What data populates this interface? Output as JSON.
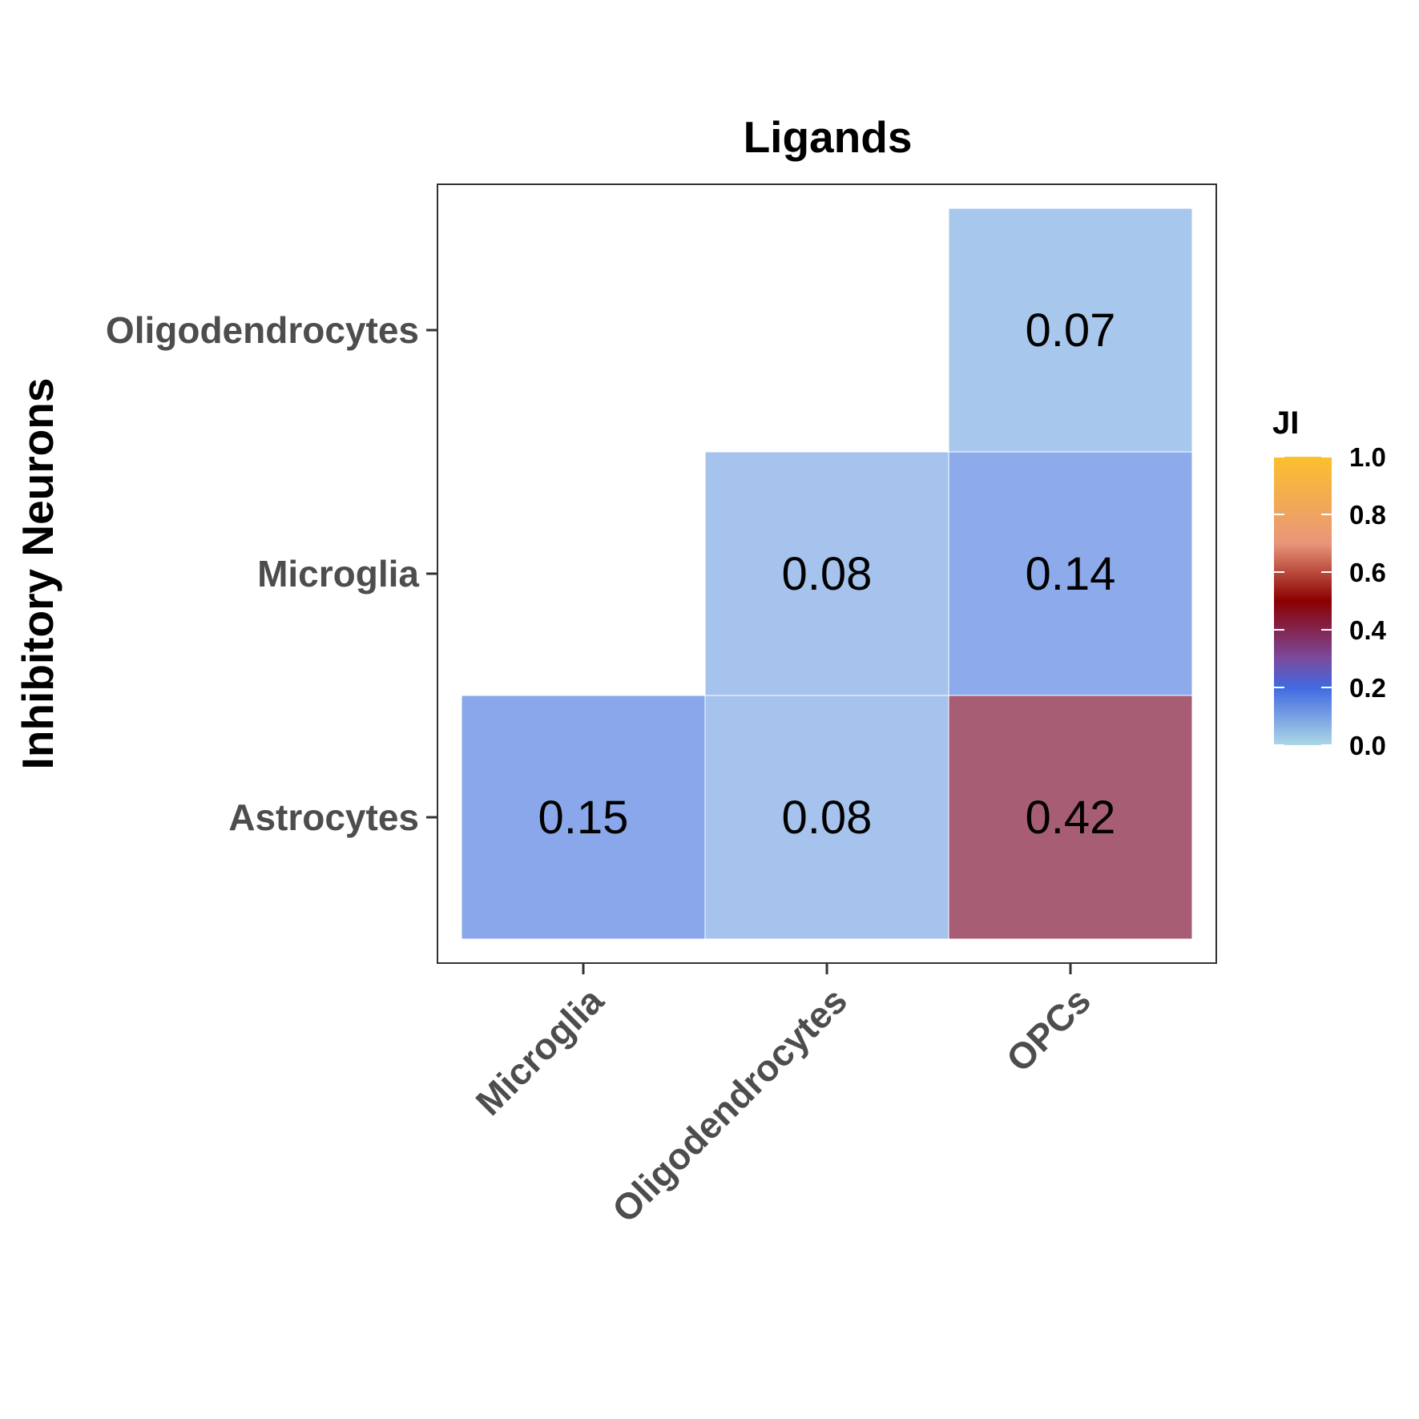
{
  "chart_data": {
    "type": "heatmap",
    "title": "Ligands",
    "xlabel": "",
    "ylabel": "Inhibitory Neurons",
    "x_categories": [
      "Microglia",
      "Oligodendrocytes",
      "OPCs"
    ],
    "y_categories": [
      "Astrocytes",
      "Microglia",
      "Oligodendrocytes"
    ],
    "cells": [
      {
        "x": "Microglia",
        "y": "Astrocytes",
        "value": 0.15,
        "label": "0.15"
      },
      {
        "x": "Oligodendrocytes",
        "y": "Astrocytes",
        "value": 0.08,
        "label": "0.08"
      },
      {
        "x": "OPCs",
        "y": "Astrocytes",
        "value": 0.42,
        "label": "0.42"
      },
      {
        "x": "Oligodendrocytes",
        "y": "Microglia",
        "value": 0.08,
        "label": "0.08"
      },
      {
        "x": "OPCs",
        "y": "Microglia",
        "value": 0.14,
        "label": "0.14"
      },
      {
        "x": "OPCs",
        "y": "Oligodendrocytes",
        "value": 0.07,
        "label": "0.07"
      }
    ],
    "legend": {
      "title": "JI",
      "position": "right",
      "range": [
        0,
        1
      ],
      "ticks": [
        "0.0",
        "0.2",
        "0.4",
        "0.6",
        "0.8",
        "1.0"
      ],
      "tick_values": [
        0,
        0.2,
        0.4,
        0.6,
        0.8,
        1.0
      ],
      "colors": [
        {
          "value": 0.0,
          "color": "#add8e6"
        },
        {
          "value": 0.2,
          "color": "#4169e1"
        },
        {
          "value": 0.3,
          "color": "#7b4a9e"
        },
        {
          "value": 0.5,
          "color": "#8b0000"
        },
        {
          "value": 0.7,
          "color": "#e9967a"
        },
        {
          "value": 1.0,
          "color": "#fbc02d"
        }
      ]
    },
    "grid": false
  }
}
